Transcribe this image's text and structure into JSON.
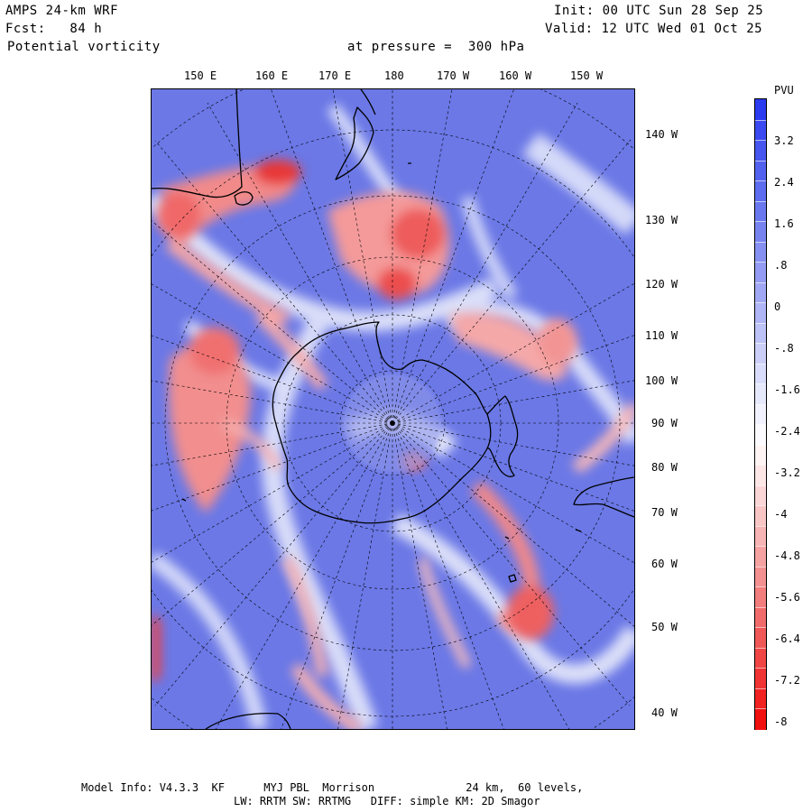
{
  "header": {
    "model": "AMPS 24-km WRF",
    "forecast": "Fcst:   84 h",
    "field": "Potential vorticity",
    "pressure": "at pressure =  300 hPa",
    "init": "Init: 00 UTC Sun 28 Sep 25",
    "valid": "Valid: 12 UTC Wed 01 Oct 25"
  },
  "map": {
    "top_lon_labels": [
      "150 E",
      "160 E",
      "170 E",
      "180",
      "170 W",
      "160 W",
      "150 W"
    ],
    "right_lon_labels": [
      "140 W",
      "130 W",
      "120 W",
      "110 W",
      "100 W",
      "90 W",
      "80 W",
      "70 W",
      "60 W",
      "50 W",
      "40 W"
    ]
  },
  "colorbar": {
    "unit": "PVU",
    "labels": [
      "3.2",
      "2.4",
      "1.6",
      ".8",
      "0",
      "-.8",
      "-1.6",
      "-2.4",
      "-3.2",
      "-4",
      "-4.8",
      "-5.6",
      "-6.4",
      "-7.2",
      "-8"
    ],
    "colors": [
      "#2a3bf0",
      "#3a4af0",
      "#4656ef",
      "#5262ef",
      "#5e6def",
      "#6a78ef",
      "#7784f0",
      "#8590f1",
      "#939cf2",
      "#a1a8f3",
      "#afb5f5",
      "#bdc2f7",
      "#cbcff8",
      "#d9dcfa",
      "#e6e8fc",
      "#f1f2fd",
      "#fbfbff",
      "#fff4f4",
      "#fde6e6",
      "#fbd6d6",
      "#f9c6c6",
      "#f7b4b4",
      "#f5a2a2",
      "#f39090",
      "#f27d7d",
      "#f16b6b",
      "#f05858",
      "#f04646",
      "#f03434",
      "#f02222",
      "#f01010"
    ]
  },
  "footer": {
    "line1": "Model Info: V4.3.3  KF      MYJ PBL  Morrison              24 km,  60 levels,",
    "line2": "LW: RRTM SW: RRTMG   DIFF: simple KM: 2D Smagor"
  }
}
